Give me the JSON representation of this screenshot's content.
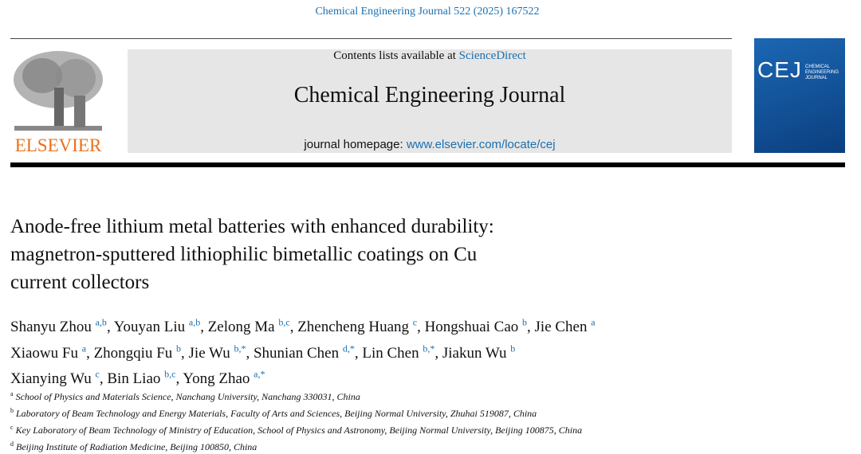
{
  "header": {
    "citation": "Chemical Engineering Journal 522 (2025) 167522",
    "contents_prefix": "Contents lists available at",
    "contents_link": "ScienceDirect",
    "journal_name": "Chemical Engineering Journal",
    "homepage_prefix": "journal homepage:",
    "homepage_link": "www.elsevier.com/locate/cej",
    "publisher": "ELSEVIER",
    "cover_abbrev": "CEJ",
    "cover_title": "CHEMICAL ENGINEERING JOURNAL"
  },
  "article": {
    "title_lines": [
      "Anode-free lithium metal batteries with enhanced durability:",
      "magnetron-sputtered lithiophilic bimetallic coatings on Cu",
      "current collectors"
    ],
    "author_lines": [
      [
        {
          "name": "Shanyu Zhou",
          "sup": "a,b"
        },
        {
          "name": "Youyan Liu",
          "sup": "a,b"
        },
        {
          "name": "Zelong Ma",
          "sup": "b,c"
        },
        {
          "name": "Zhencheng Huang",
          "sup": "c"
        },
        {
          "name": "Hongshuai Cao",
          "sup": "b"
        },
        {
          "name": "Jie Chen",
          "sup": "a"
        }
      ],
      [
        {
          "name": "Xiaowu Fu",
          "sup": "a"
        },
        {
          "name": "Zhongqiu Fu",
          "sup": "b"
        },
        {
          "name": "Jie Wu",
          "sup": "b,*"
        },
        {
          "name": "Shunian Chen",
          "sup": "d,*"
        },
        {
          "name": "Lin Chen",
          "sup": "b,*"
        },
        {
          "name": "Jiakun Wu",
          "sup": "b"
        }
      ],
      [
        {
          "name": "Xianying Wu",
          "sup": "c"
        },
        {
          "name": "Bin Liao",
          "sup": "b,c"
        },
        {
          "name": "Yong Zhao",
          "sup": "a,*"
        }
      ]
    ],
    "affiliations": [
      {
        "sup": "a",
        "text": "School of Physics and Materials Science, Nanchang University, Nanchang 330031, China"
      },
      {
        "sup": "b",
        "text": "Laboratory of Beam Technology and Energy Materials, Faculty of Arts and Sciences, Beijing Normal University, Zhuhai 519087, China"
      },
      {
        "sup": "c",
        "text": "Key Laboratory of Beam Technology of Ministry of Education, School of Physics and Astronomy, Beijing Normal University, Beijing 100875, China"
      },
      {
        "sup": "d",
        "text": "Beijing Institute of Radiation Medicine, Beijing 100850, China"
      }
    ]
  }
}
